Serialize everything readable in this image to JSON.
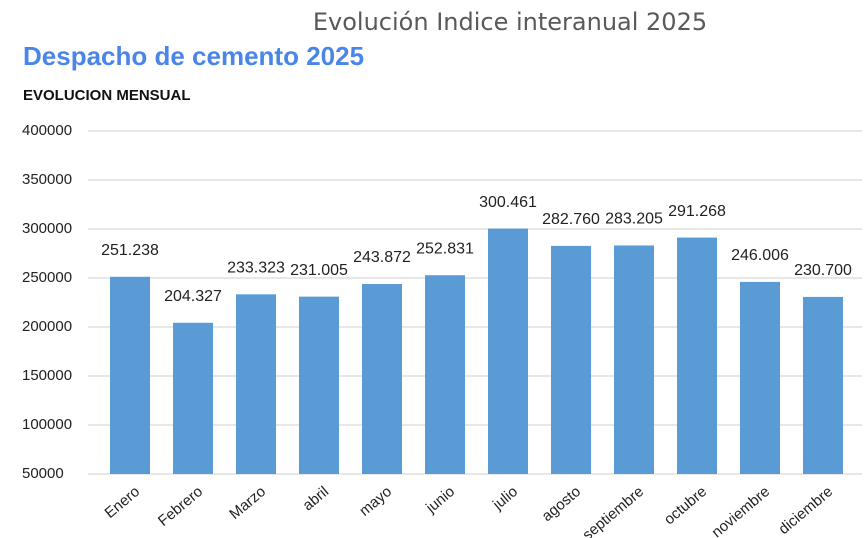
{
  "chart_data": {
    "type": "bar",
    "title": "Evolución Indice interanual 2025",
    "subtitle": "Despacho de cemento 2025",
    "caption": "EVOLUCION MENSUAL",
    "categories": [
      "Enero",
      "Febrero",
      "Marzo",
      "abril",
      "mayo",
      "junio",
      "julio",
      "agosto",
      "septiembre",
      "octubre",
      "noviembre",
      "diciembre"
    ],
    "values": [
      251238,
      204327,
      233323,
      231005,
      243872,
      252831,
      300461,
      282760,
      283205,
      291268,
      246006,
      230700
    ],
    "value_labels": [
      "251.238",
      "204.327",
      "233.323",
      "231.005",
      "243.872",
      "252.831",
      "300.461",
      "282.760",
      "283.205",
      "291.268",
      "246.006",
      "230.700"
    ],
    "color": "#5b9bd5",
    "ylim": [
      50000,
      400000
    ],
    "yticks": [
      50000,
      100000,
      150000,
      200000,
      250000,
      300000,
      350000,
      400000
    ],
    "grid": true
  }
}
